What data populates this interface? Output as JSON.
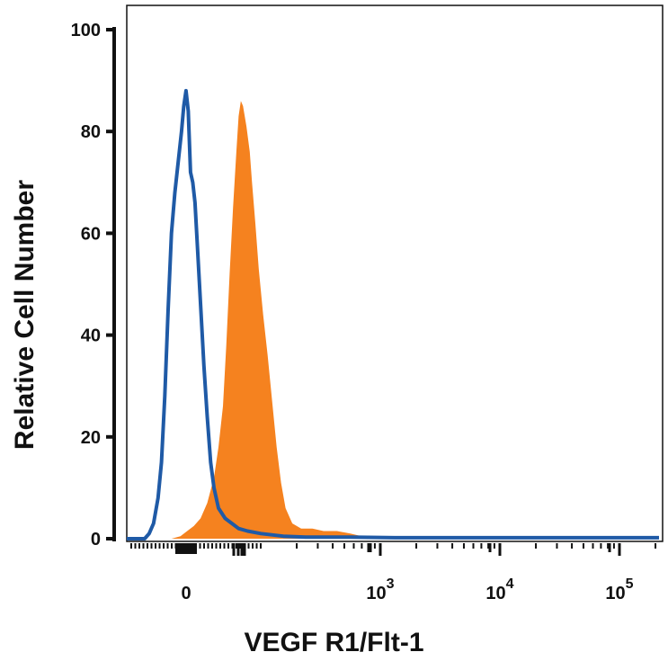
{
  "chart_data": {
    "type": "area",
    "title": "",
    "xlabel": "VEGF R1/Flt-1",
    "ylabel": "Relative Cell Number",
    "x_scale": "biexponential",
    "x_tick_labels": [
      {
        "base": "0",
        "exp": ""
      },
      {
        "base": "10",
        "exp": "3"
      },
      {
        "base": "10",
        "exp": "4"
      },
      {
        "base": "10",
        "exp": "5"
      }
    ],
    "y_ticks": [
      0,
      20,
      40,
      60,
      80,
      100
    ],
    "ylim": [
      0,
      100
    ],
    "grid": false,
    "legend": "none",
    "series": [
      {
        "style": "filled",
        "color": "#F5821F",
        "points": [
          [
            0.5,
            0
          ],
          [
            0.54,
            0.5
          ],
          [
            0.57,
            1.5
          ],
          [
            0.6,
            2.5
          ],
          [
            0.63,
            4
          ],
          [
            0.66,
            7
          ],
          [
            0.69,
            12
          ],
          [
            0.71,
            18
          ],
          [
            0.73,
            26
          ],
          [
            0.745,
            38
          ],
          [
            0.76,
            52
          ],
          [
            0.775,
            65
          ],
          [
            0.79,
            76
          ],
          [
            0.8,
            83
          ],
          [
            0.81,
            86
          ],
          [
            0.82,
            85
          ],
          [
            0.835,
            81
          ],
          [
            0.85,
            76
          ],
          [
            0.86,
            70
          ],
          [
            0.875,
            62
          ],
          [
            0.89,
            53
          ],
          [
            0.91,
            44
          ],
          [
            0.93,
            36
          ],
          [
            0.95,
            27
          ],
          [
            0.97,
            18
          ],
          [
            0.99,
            11
          ],
          [
            1.01,
            6
          ],
          [
            1.04,
            3
          ],
          [
            1.08,
            2
          ],
          [
            1.13,
            2
          ],
          [
            1.18,
            1.5
          ],
          [
            1.24,
            1.5
          ],
          [
            1.3,
            1
          ],
          [
            1.35,
            0.5
          ],
          [
            1.4,
            0
          ]
        ]
      },
      {
        "style": "line",
        "color": "#1F5AA6",
        "points": [
          [
            0.3,
            0
          ],
          [
            0.38,
            0
          ],
          [
            0.4,
            1
          ],
          [
            0.42,
            3
          ],
          [
            0.44,
            8
          ],
          [
            0.455,
            15
          ],
          [
            0.47,
            28
          ],
          [
            0.485,
            45
          ],
          [
            0.5,
            60
          ],
          [
            0.515,
            68
          ],
          [
            0.53,
            74
          ],
          [
            0.545,
            80
          ],
          [
            0.555,
            85
          ],
          [
            0.565,
            88
          ],
          [
            0.575,
            84
          ],
          [
            0.585,
            72
          ],
          [
            0.595,
            70
          ],
          [
            0.605,
            66
          ],
          [
            0.615,
            58
          ],
          [
            0.63,
            46
          ],
          [
            0.645,
            34
          ],
          [
            0.66,
            24
          ],
          [
            0.675,
            15
          ],
          [
            0.69,
            10
          ],
          [
            0.71,
            6
          ],
          [
            0.74,
            4
          ],
          [
            0.77,
            3
          ],
          [
            0.8,
            2
          ],
          [
            0.84,
            1.5
          ],
          [
            0.9,
            1
          ],
          [
            1.0,
            0.5
          ],
          [
            1.1,
            0.3
          ],
          [
            1.3,
            0.3
          ],
          [
            1.5,
            0.2
          ],
          [
            1.8,
            0.2
          ],
          [
            2.1,
            0.2
          ],
          [
            2.4,
            0.2
          ],
          [
            2.68,
            0.2
          ]
        ]
      }
    ]
  }
}
